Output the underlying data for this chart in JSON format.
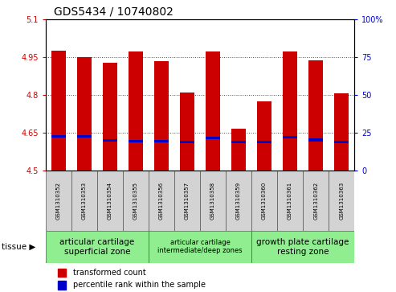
{
  "title": "GDS5434 / 10740802",
  "samples": [
    "GSM1310352",
    "GSM1310353",
    "GSM1310354",
    "GSM1310355",
    "GSM1310356",
    "GSM1310357",
    "GSM1310358",
    "GSM1310359",
    "GSM1310360",
    "GSM1310361",
    "GSM1310362",
    "GSM1310363"
  ],
  "red_values": [
    4.975,
    4.948,
    4.928,
    4.972,
    4.932,
    4.808,
    4.972,
    4.665,
    4.775,
    4.972,
    4.938,
    4.805
  ],
  "blue_values": [
    4.637,
    4.637,
    4.62,
    4.618,
    4.617,
    4.615,
    4.63,
    4.615,
    4.614,
    4.632,
    4.622,
    4.615
  ],
  "y_min": 4.5,
  "y_max": 5.1,
  "y_ticks": [
    4.5,
    4.65,
    4.8,
    4.95,
    5.1
  ],
  "y_tick_labels": [
    "4.5",
    "4.65",
    "4.8",
    "4.95",
    "5.1"
  ],
  "y2_ticks": [
    0,
    25,
    50,
    75,
    100
  ],
  "y2_tick_labels": [
    "0",
    "25",
    "50",
    "75",
    "100%"
  ],
  "bar_width": 0.55,
  "red_color": "#cc0000",
  "blue_color": "#0000cc",
  "groups": [
    {
      "label": "articular cartilage\nsuperficial zone",
      "start": 0,
      "end": 3,
      "fontsize": 7.5
    },
    {
      "label": "articular cartilage\nintermediate/deep zones",
      "start": 4,
      "end": 7,
      "fontsize": 6.0
    },
    {
      "label": "growth plate cartilage\nresting zone",
      "start": 8,
      "end": 11,
      "fontsize": 7.5
    }
  ],
  "group_color": "#90ee90",
  "tissue_label": "tissue",
  "legend_items": [
    {
      "color": "#cc0000",
      "label": "transformed count"
    },
    {
      "color": "#0000cc",
      "label": "percentile rank within the sample"
    }
  ],
  "title_fontsize": 10,
  "sample_fontsize": 5.0,
  "tick_label_fontsize": 7,
  "axis_label_color_left": "#cc0000",
  "axis_label_color_right": "#0000cc",
  "grid_color": "#000000",
  "grid_alpha": 0.7,
  "blue_bar_height": 0.01,
  "tissue_arrow": "▶"
}
